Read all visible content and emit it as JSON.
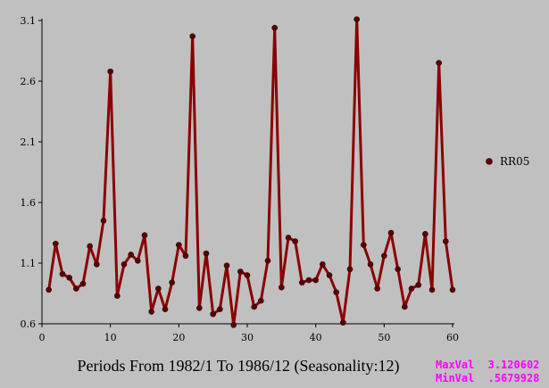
{
  "chart_data": {
    "type": "line",
    "title": "",
    "xlabel": "Periods From 1982/1 To 1986/12 (Seasonality:12)",
    "ylabel": "",
    "xlim": [
      0,
      60
    ],
    "ylim": [
      0.6,
      3.1
    ],
    "x_ticks": [
      0,
      10,
      20,
      30,
      40,
      50,
      60
    ],
    "y_ticks": [
      0.6,
      1.1,
      1.6,
      2.1,
      2.6,
      3.1
    ],
    "y_tick_labels": [
      "0.6",
      "1.1",
      "1.6",
      "2.1",
      "2.6",
      "3.1"
    ],
    "grid": false,
    "legend_position": "right",
    "series": [
      {
        "name": "RR05",
        "color": "#8b0000",
        "x": [
          1,
          2,
          3,
          4,
          5,
          6,
          7,
          8,
          9,
          10,
          11,
          12,
          13,
          14,
          15,
          16,
          17,
          18,
          19,
          20,
          21,
          22,
          23,
          24,
          25,
          26,
          27,
          28,
          29,
          30,
          31,
          32,
          33,
          34,
          35,
          36,
          37,
          38,
          39,
          40,
          41,
          42,
          43,
          44,
          45,
          46,
          47,
          48,
          49,
          50,
          51,
          52,
          53,
          54,
          55,
          56,
          57,
          58,
          59,
          60
        ],
        "values": [
          0.88,
          1.26,
          1.01,
          0.98,
          0.89,
          0.93,
          1.24,
          1.09,
          1.45,
          2.68,
          0.83,
          1.09,
          1.17,
          1.12,
          1.33,
          0.7,
          0.89,
          0.72,
          0.94,
          1.25,
          1.16,
          2.97,
          0.73,
          1.18,
          0.68,
          0.72,
          1.08,
          0.59,
          1.03,
          1.0,
          0.74,
          0.79,
          1.12,
          3.04,
          0.9,
          1.31,
          1.28,
          0.94,
          0.96,
          0.96,
          1.09,
          1.0,
          0.86,
          0.61,
          1.05,
          3.11,
          1.25,
          1.09,
          0.89,
          1.16,
          1.35,
          1.05,
          0.74,
          0.89,
          0.92,
          1.34,
          0.88,
          2.75,
          1.28,
          0.88
        ]
      }
    ]
  },
  "stats": {
    "max_label": "MaxVal",
    "max_value": "3.120602",
    "min_label": "MinVal",
    "min_value": ".5679928"
  }
}
